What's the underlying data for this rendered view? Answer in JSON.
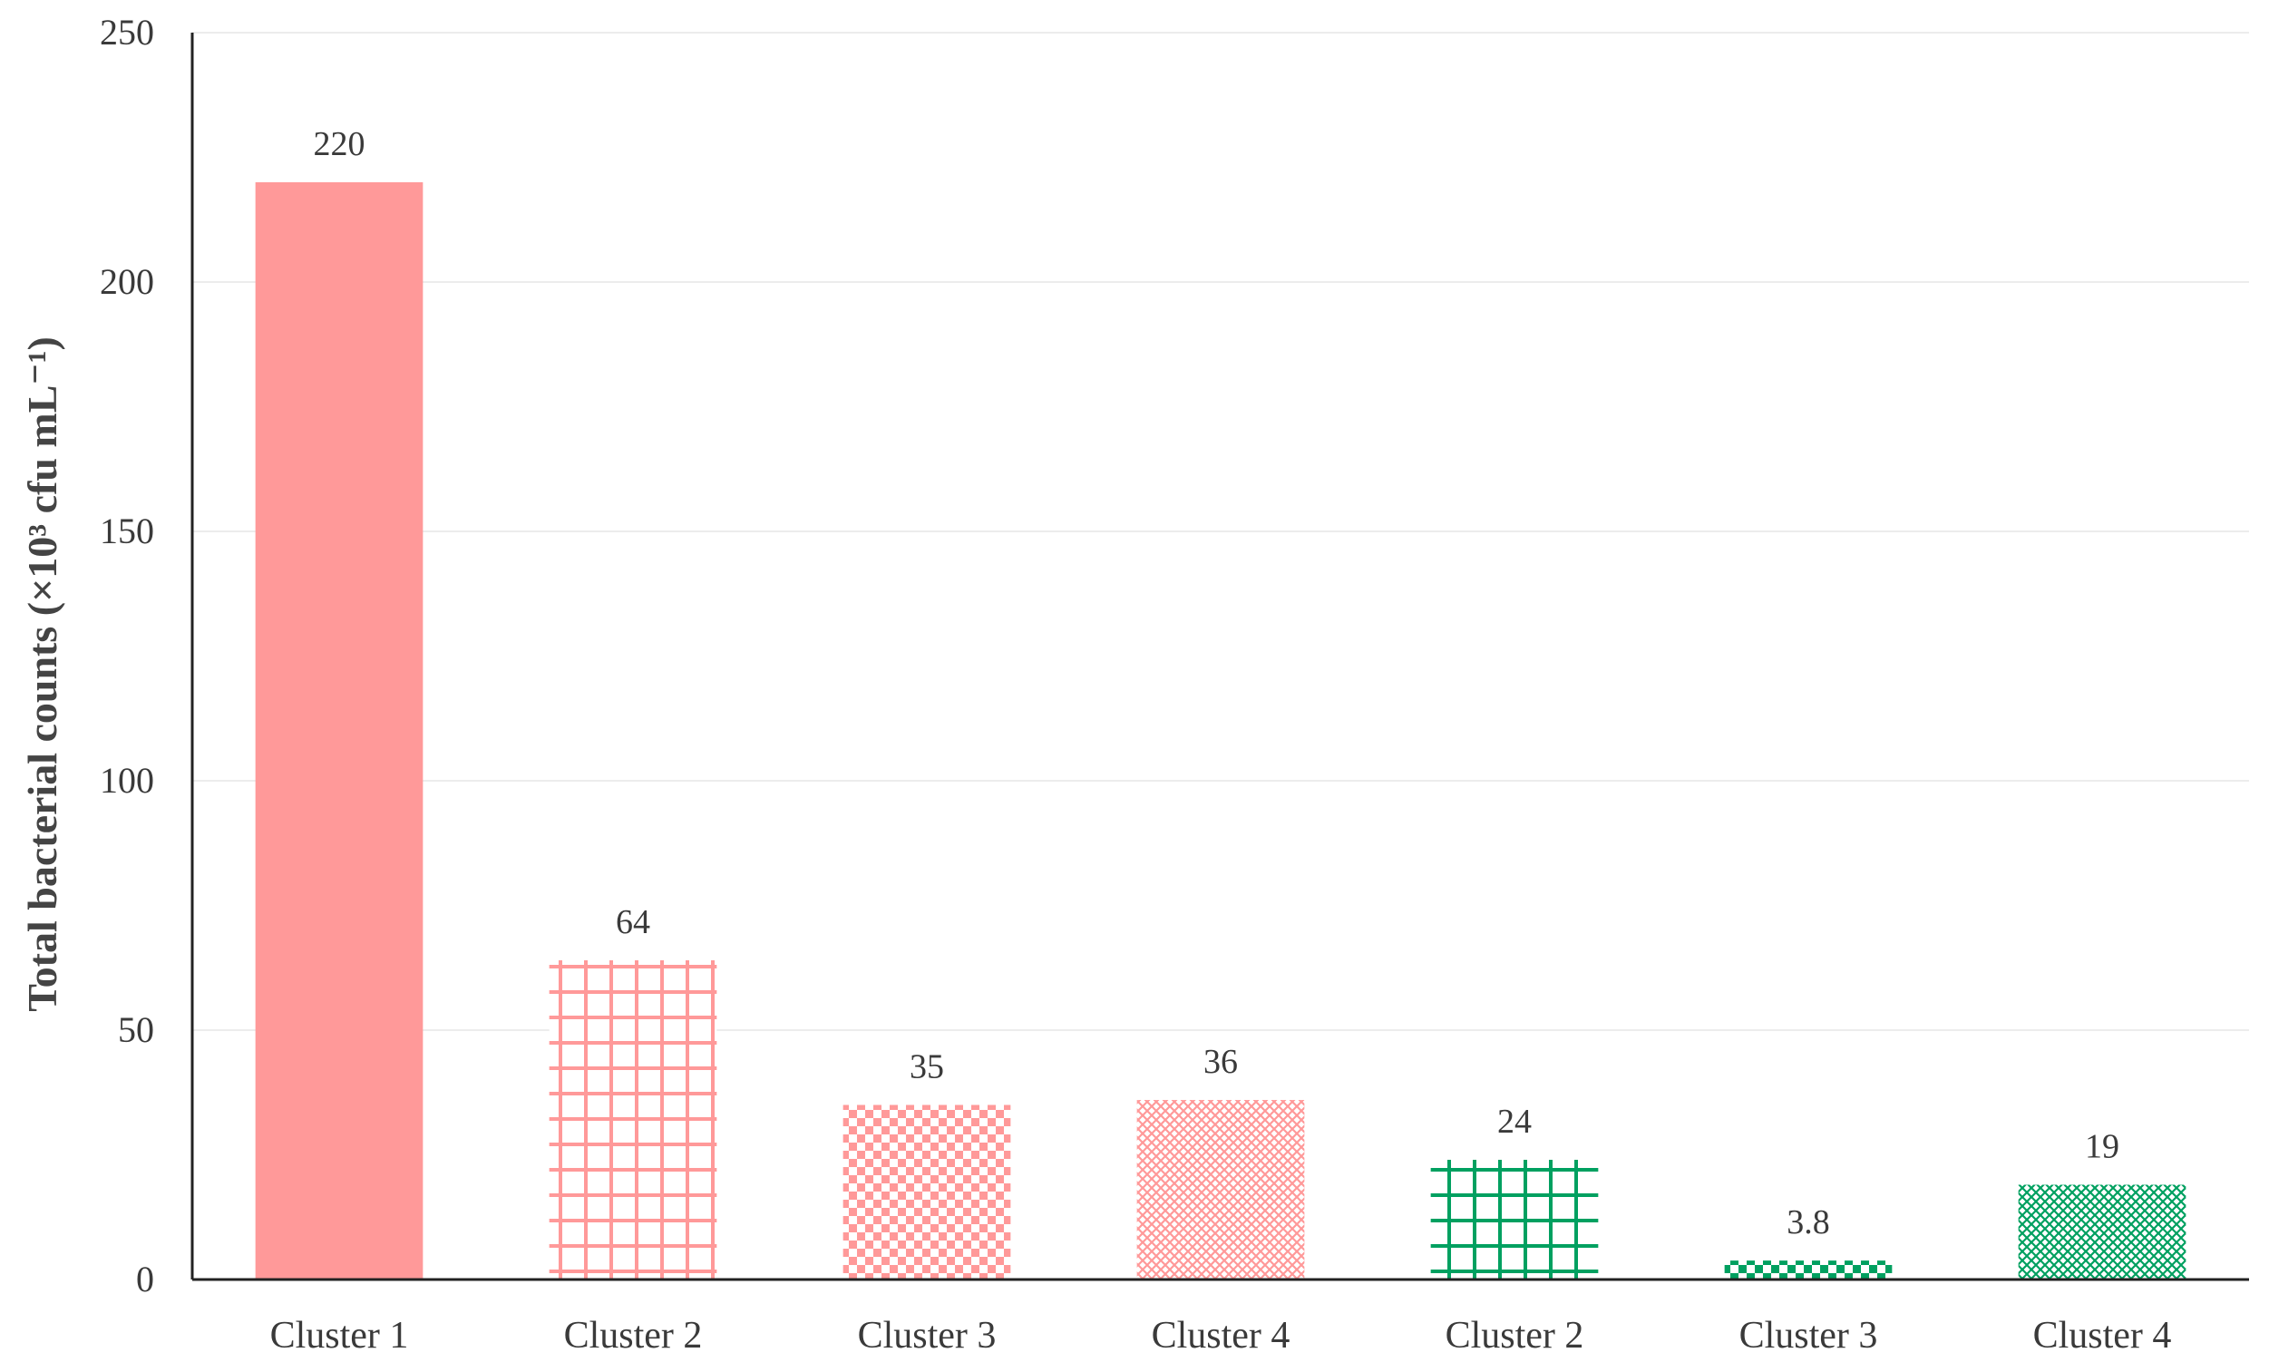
{
  "chart_data": {
    "type": "bar",
    "categories": [
      "Cluster 1",
      "Cluster 2",
      "Cluster 3",
      "Cluster 4",
      "Cluster 2",
      "Cluster 3",
      "Cluster 4"
    ],
    "values": [
      220,
      64,
      35,
      36,
      24,
      3.8,
      19
    ],
    "data_labels": [
      "220",
      "64",
      "35",
      "36",
      "24",
      "3.8",
      "19"
    ],
    "bar_styles": [
      "solid",
      "grid",
      "checker",
      "crosshatch",
      "grid",
      "checker",
      "crosshatch"
    ],
    "bar_colors": [
      "#ff9999",
      "#ff9999",
      "#ff9999",
      "#ff9999",
      "#00a060",
      "#00a060",
      "#00a060"
    ],
    "title": "",
    "xlabel": "",
    "ylabel": "Total bacterial counts (×10³ cfu mL⁻¹)",
    "ylim": [
      0,
      250
    ],
    "yticks": [
      0,
      50,
      100,
      150,
      200,
      250
    ],
    "grid": true,
    "legend": "none"
  }
}
